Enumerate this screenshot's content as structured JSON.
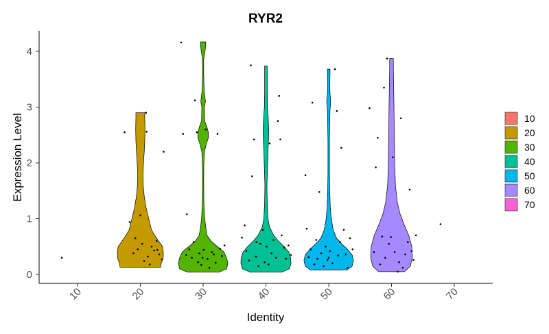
{
  "chart_data": {
    "type": "violin",
    "title": "RYR2",
    "xlabel": "Identity",
    "ylabel": "Expression Level",
    "categories": [
      "10",
      "20",
      "30",
      "40",
      "50",
      "60",
      "70"
    ],
    "ylim": [
      -0.15,
      4.2
    ],
    "yticks": [
      0,
      1,
      2,
      3,
      4
    ],
    "grid": false,
    "legend_position": "right",
    "legend": [
      {
        "label": "10",
        "color": "#F8766D"
      },
      {
        "label": "20",
        "color": "#C49A00"
      },
      {
        "label": "30",
        "color": "#53B400"
      },
      {
        "label": "40",
        "color": "#00C094"
      },
      {
        "label": "50",
        "color": "#00B6EB"
      },
      {
        "label": "60",
        "color": "#A58AFF"
      },
      {
        "label": "70",
        "color": "#FB61D7"
      }
    ],
    "violins": [
      {
        "category": "20",
        "color": "#C49A00",
        "profile": [
          [
            0.13,
            0.78
          ],
          [
            0.2,
            0.8
          ],
          [
            0.3,
            0.88
          ],
          [
            0.4,
            0.88
          ],
          [
            0.5,
            0.85
          ],
          [
            0.6,
            0.7
          ],
          [
            0.7,
            0.55
          ],
          [
            0.8,
            0.43
          ],
          [
            1.0,
            0.32
          ],
          [
            1.2,
            0.22
          ],
          [
            1.4,
            0.15
          ],
          [
            1.6,
            0.11
          ],
          [
            1.8,
            0.1
          ],
          [
            2.0,
            0.12
          ],
          [
            2.2,
            0.15
          ],
          [
            2.4,
            0.17
          ],
          [
            2.6,
            0.18
          ],
          [
            2.8,
            0.17
          ],
          [
            2.9,
            0.17
          ]
        ]
      },
      {
        "category": "30",
        "color": "#53B400",
        "profile": [
          [
            0.04,
            0.6
          ],
          [
            0.1,
            0.9
          ],
          [
            0.2,
            0.95
          ],
          [
            0.3,
            0.9
          ],
          [
            0.4,
            0.8
          ],
          [
            0.5,
            0.55
          ],
          [
            0.6,
            0.3
          ],
          [
            0.7,
            0.15
          ],
          [
            0.85,
            0.1
          ],
          [
            1.0,
            0.06
          ],
          [
            1.3,
            0.03
          ],
          [
            1.7,
            0.02
          ],
          [
            2.0,
            0.03
          ],
          [
            2.2,
            0.05
          ],
          [
            2.35,
            0.13
          ],
          [
            2.45,
            0.2
          ],
          [
            2.55,
            0.2
          ],
          [
            2.65,
            0.14
          ],
          [
            2.75,
            0.06
          ],
          [
            3.0,
            0.05
          ],
          [
            3.1,
            0.09
          ],
          [
            3.3,
            0.04
          ],
          [
            3.6,
            0.02
          ],
          [
            3.85,
            0.02
          ],
          [
            4.0,
            0.07
          ],
          [
            4.1,
            0.1
          ],
          [
            4.17,
            0.1
          ]
        ]
      },
      {
        "category": "40",
        "color": "#00C094",
        "profile": [
          [
            0.04,
            0.6
          ],
          [
            0.1,
            0.9
          ],
          [
            0.2,
            0.96
          ],
          [
            0.3,
            0.95
          ],
          [
            0.4,
            0.88
          ],
          [
            0.5,
            0.7
          ],
          [
            0.6,
            0.48
          ],
          [
            0.7,
            0.3
          ],
          [
            0.85,
            0.14
          ],
          [
            1.0,
            0.08
          ],
          [
            1.3,
            0.05
          ],
          [
            1.6,
            0.04
          ],
          [
            1.9,
            0.06
          ],
          [
            2.2,
            0.08
          ],
          [
            2.4,
            0.1
          ],
          [
            2.6,
            0.11
          ],
          [
            2.8,
            0.09
          ],
          [
            3.0,
            0.06
          ],
          [
            3.3,
            0.05
          ],
          [
            3.55,
            0.05
          ],
          [
            3.74,
            0.05
          ]
        ]
      },
      {
        "category": "50",
        "color": "#00B6EB",
        "profile": [
          [
            0.08,
            0.7
          ],
          [
            0.15,
            0.9
          ],
          [
            0.25,
            0.95
          ],
          [
            0.35,
            0.9
          ],
          [
            0.45,
            0.72
          ],
          [
            0.55,
            0.5
          ],
          [
            0.65,
            0.3
          ],
          [
            0.8,
            0.17
          ],
          [
            1.0,
            0.1
          ],
          [
            1.2,
            0.06
          ],
          [
            1.5,
            0.04
          ],
          [
            1.8,
            0.03
          ],
          [
            2.1,
            0.03
          ],
          [
            2.4,
            0.03
          ],
          [
            2.7,
            0.04
          ],
          [
            2.95,
            0.05
          ],
          [
            3.1,
            0.08
          ],
          [
            3.25,
            0.05
          ],
          [
            3.4,
            0.04
          ],
          [
            3.6,
            0.05
          ],
          [
            3.68,
            0.05
          ]
        ]
      },
      {
        "category": "60",
        "color": "#A58AFF",
        "profile": [
          [
            0.05,
            0.5
          ],
          [
            0.15,
            0.72
          ],
          [
            0.3,
            0.8
          ],
          [
            0.5,
            0.78
          ],
          [
            0.7,
            0.66
          ],
          [
            0.9,
            0.48
          ],
          [
            1.1,
            0.32
          ],
          [
            1.3,
            0.22
          ],
          [
            1.6,
            0.15
          ],
          [
            2.0,
            0.12
          ],
          [
            2.4,
            0.11
          ],
          [
            2.8,
            0.1
          ],
          [
            3.2,
            0.09
          ],
          [
            3.5,
            0.08
          ],
          [
            3.7,
            0.07
          ],
          [
            3.87,
            0.07
          ]
        ]
      }
    ],
    "points": [
      {
        "x": 7.5,
        "y": 0.3
      },
      {
        "x": 17.5,
        "y": 2.55
      },
      {
        "x": 18.3,
        "y": 0.94
      },
      {
        "x": 18.9,
        "y": 0.38
      },
      {
        "x": 19.2,
        "y": 0.65
      },
      {
        "x": 19.6,
        "y": 0.45
      },
      {
        "x": 20.0,
        "y": 1.06
      },
      {
        "x": 20.3,
        "y": 0.55
      },
      {
        "x": 20.6,
        "y": 0.24
      },
      {
        "x": 20.9,
        "y": 2.9
      },
      {
        "x": 21.0,
        "y": 2.56
      },
      {
        "x": 21.2,
        "y": 0.32
      },
      {
        "x": 21.5,
        "y": 0.18
      },
      {
        "x": 21.8,
        "y": 0.5
      },
      {
        "x": 22.2,
        "y": 0.43
      },
      {
        "x": 22.6,
        "y": 0.6
      },
      {
        "x": 23.0,
        "y": 0.36
      },
      {
        "x": 23.4,
        "y": 0.27
      },
      {
        "x": 23.7,
        "y": 2.2
      },
      {
        "x": 22.7,
        "y": 0.44
      },
      {
        "x": 26.5,
        "y": 4.16
      },
      {
        "x": 26.8,
        "y": 2.52
      },
      {
        "x": 27.4,
        "y": 1.08
      },
      {
        "x": 27.3,
        "y": 0.35
      },
      {
        "x": 27.8,
        "y": 0.45
      },
      {
        "x": 28.2,
        "y": 0.3
      },
      {
        "x": 28.5,
        "y": 0.58
      },
      {
        "x": 28.7,
        "y": 3.12
      },
      {
        "x": 29.0,
        "y": 2.55
      },
      {
        "x": 29.2,
        "y": 0.22
      },
      {
        "x": 29.4,
        "y": 0.38
      },
      {
        "x": 29.7,
        "y": 0.17
      },
      {
        "x": 30.1,
        "y": 0.44
      },
      {
        "x": 30.4,
        "y": 2.6
      },
      {
        "x": 30.7,
        "y": 0.28
      },
      {
        "x": 31.0,
        "y": 0.12
      },
      {
        "x": 31.4,
        "y": 0.4
      },
      {
        "x": 31.7,
        "y": 0.36
      },
      {
        "x": 32.0,
        "y": 0.21
      },
      {
        "x": 32.3,
        "y": 2.52
      },
      {
        "x": 32.7,
        "y": 0.46
      },
      {
        "x": 33.0,
        "y": 0.33
      },
      {
        "x": 33.4,
        "y": 0.52
      },
      {
        "x": 29.9,
        "y": 0.3
      },
      {
        "x": 36.2,
        "y": 0.66
      },
      {
        "x": 36.6,
        "y": 0.88
      },
      {
        "x": 36.9,
        "y": 0.42
      },
      {
        "x": 37.3,
        "y": 0.25
      },
      {
        "x": 37.6,
        "y": 3.75
      },
      {
        "x": 37.8,
        "y": 1.76
      },
      {
        "x": 38.1,
        "y": 2.42
      },
      {
        "x": 38.4,
        "y": 0.32
      },
      {
        "x": 38.8,
        "y": 0.15
      },
      {
        "x": 39.1,
        "y": 0.55
      },
      {
        "x": 39.5,
        "y": 0.8
      },
      {
        "x": 39.8,
        "y": 0.22
      },
      {
        "x": 40.1,
        "y": 0.5
      },
      {
        "x": 40.4,
        "y": 0.18
      },
      {
        "x": 40.6,
        "y": 2.35
      },
      {
        "x": 40.9,
        "y": 0.38
      },
      {
        "x": 41.2,
        "y": 0.62
      },
      {
        "x": 41.6,
        "y": 0.3
      },
      {
        "x": 41.9,
        "y": 2.75
      },
      {
        "x": 42.1,
        "y": 3.2
      },
      {
        "x": 42.3,
        "y": 2.42
      },
      {
        "x": 42.5,
        "y": 0.7
      },
      {
        "x": 42.9,
        "y": 0.48
      },
      {
        "x": 43.2,
        "y": 0.28
      },
      {
        "x": 43.6,
        "y": 0.52
      },
      {
        "x": 44.0,
        "y": 0.35
      },
      {
        "x": 38.5,
        "y": 0.58
      },
      {
        "x": 46.3,
        "y": 1.78
      },
      {
        "x": 46.5,
        "y": 0.82
      },
      {
        "x": 46.8,
        "y": 0.31
      },
      {
        "x": 47.1,
        "y": 0.45
      },
      {
        "x": 47.4,
        "y": 3.08
      },
      {
        "x": 47.7,
        "y": 0.18
      },
      {
        "x": 48.0,
        "y": 0.62
      },
      {
        "x": 48.2,
        "y": 0.28
      },
      {
        "x": 48.5,
        "y": 1.48
      },
      {
        "x": 48.8,
        "y": 0.38
      },
      {
        "x": 49.2,
        "y": 0.15
      },
      {
        "x": 49.5,
        "y": 0.5
      },
      {
        "x": 49.8,
        "y": 0.26
      },
      {
        "x": 50.2,
        "y": 0.42
      },
      {
        "x": 50.6,
        "y": 0.2
      },
      {
        "x": 51.0,
        "y": 3.68
      },
      {
        "x": 51.3,
        "y": 2.93
      },
      {
        "x": 51.5,
        "y": 0.34
      },
      {
        "x": 51.8,
        "y": 0.58
      },
      {
        "x": 52.0,
        "y": 2.27
      },
      {
        "x": 52.4,
        "y": 0.8
      },
      {
        "x": 52.7,
        "y": 0.36
      },
      {
        "x": 53.0,
        "y": 0.12
      },
      {
        "x": 53.4,
        "y": 0.65
      },
      {
        "x": 53.8,
        "y": 0.45
      },
      {
        "x": 50.0,
        "y": 0.3
      },
      {
        "x": 56.5,
        "y": 2.98
      },
      {
        "x": 57.2,
        "y": 0.4
      },
      {
        "x": 57.5,
        "y": 1.92
      },
      {
        "x": 57.8,
        "y": 2.45
      },
      {
        "x": 58.2,
        "y": 0.18
      },
      {
        "x": 58.5,
        "y": 0.68
      },
      {
        "x": 58.8,
        "y": 3.35
      },
      {
        "x": 59.0,
        "y": 0.3
      },
      {
        "x": 59.3,
        "y": 3.87
      },
      {
        "x": 59.6,
        "y": 0.55
      },
      {
        "x": 59.9,
        "y": 0.67
      },
      {
        "x": 60.2,
        "y": 2.1
      },
      {
        "x": 60.5,
        "y": 0.4
      },
      {
        "x": 61.2,
        "y": 0.22
      },
      {
        "x": 61.5,
        "y": 2.8
      },
      {
        "x": 61.8,
        "y": 0.12
      },
      {
        "x": 62.2,
        "y": 0.36
      },
      {
        "x": 62.6,
        "y": 0.58
      },
      {
        "x": 62.9,
        "y": 1.52
      },
      {
        "x": 63.2,
        "y": 0.42
      },
      {
        "x": 63.5,
        "y": 0.26
      },
      {
        "x": 63.9,
        "y": 0.7
      },
      {
        "x": 61.0,
        "y": 0.05
      },
      {
        "x": 67.8,
        "y": 0.9
      }
    ]
  }
}
